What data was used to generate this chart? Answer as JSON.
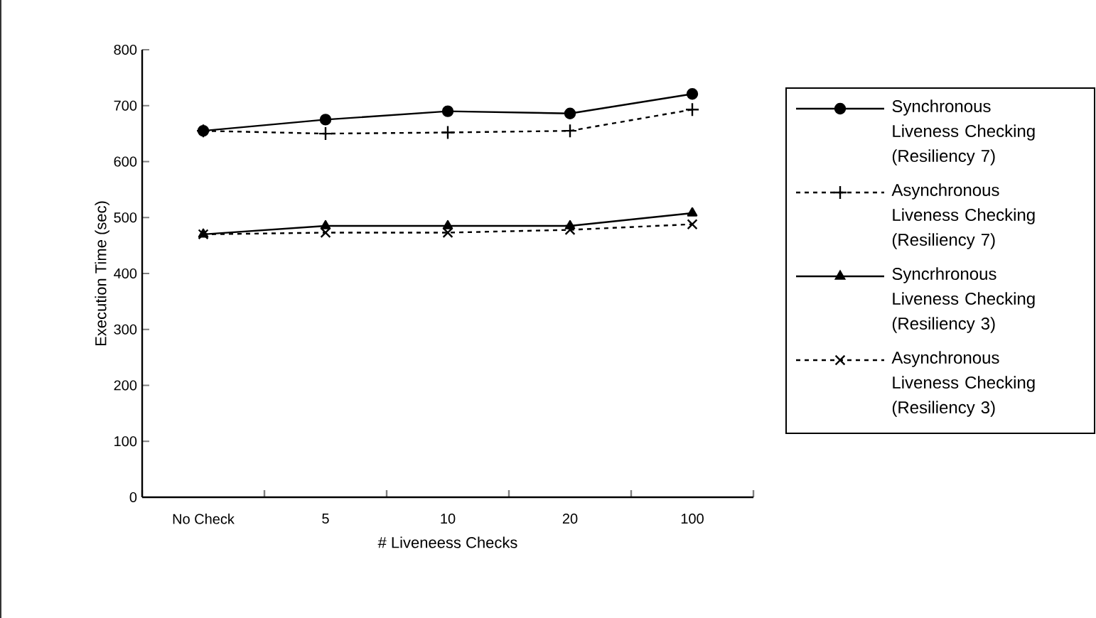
{
  "chart_data": {
    "type": "line",
    "xlabel": "# Liveneess Checks",
    "ylabel": "Execution Time (sec)",
    "categories": [
      "No Check",
      "5",
      "10",
      "20",
      "100"
    ],
    "ylim": [
      0,
      800
    ],
    "yticks": [
      0,
      100,
      200,
      300,
      400,
      500,
      600,
      700,
      800
    ],
    "legend": "right",
    "grid": false,
    "series": [
      {
        "name": "Synchronous Liveness Checking (Resiliency 7)",
        "color": "#000000",
        "marker": "circle",
        "line_style": "solid",
        "values": [
          655,
          675,
          690,
          686,
          721
        ]
      },
      {
        "name": "Asynchronous Liveness Checking (Resiliency 7)",
        "color": "#000000",
        "marker": "cross",
        "line_style": "dashed",
        "values": [
          655,
          650,
          652,
          655,
          693
        ]
      },
      {
        "name": "Syncrhronous Liveness Checking (Resiliency 3)",
        "color": "#000000",
        "marker": "triangle",
        "line_style": "solid",
        "values": [
          470,
          485,
          485,
          485,
          508
        ]
      },
      {
        "name": "Asynchronous Liveness Checking (Resiliency 3)",
        "color": "#000000",
        "marker": "x",
        "line_style": "dashed",
        "values": [
          470,
          473,
          473,
          478,
          488
        ]
      }
    ]
  }
}
